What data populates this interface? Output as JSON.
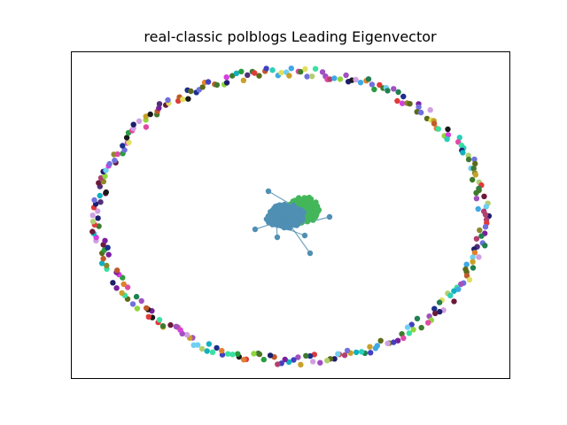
{
  "figure": {
    "title": "real-classic polblogs Leading Eigenvector"
  },
  "colors": {
    "background": "#ffffff",
    "axes_border": "#000000",
    "cluster_blue": "#4f8fb3",
    "cluster_green": "#44b65a",
    "isolate_palette": [
      "#3f7a2e",
      "#7a1f9c",
      "#1b2f8c",
      "#e04aa5",
      "#2bd0b8",
      "#c9a02a",
      "#6b1a3a",
      "#8fd63c",
      "#1e1e6e",
      "#d43fe0",
      "#3fa8e6",
      "#8a8a2a",
      "#5c6b1a",
      "#e0e060",
      "#2a9c3f",
      "#b04070",
      "#6fd0f0",
      "#1a1a1a",
      "#c05a2a",
      "#7070e0",
      "#a050c0",
      "#3ae0a0",
      "#e03a3a",
      "#10b0c0",
      "#b0d070",
      "#50307a",
      "#d0a0e0",
      "#208050",
      "#e08030",
      "#4040c0"
    ]
  }
}
